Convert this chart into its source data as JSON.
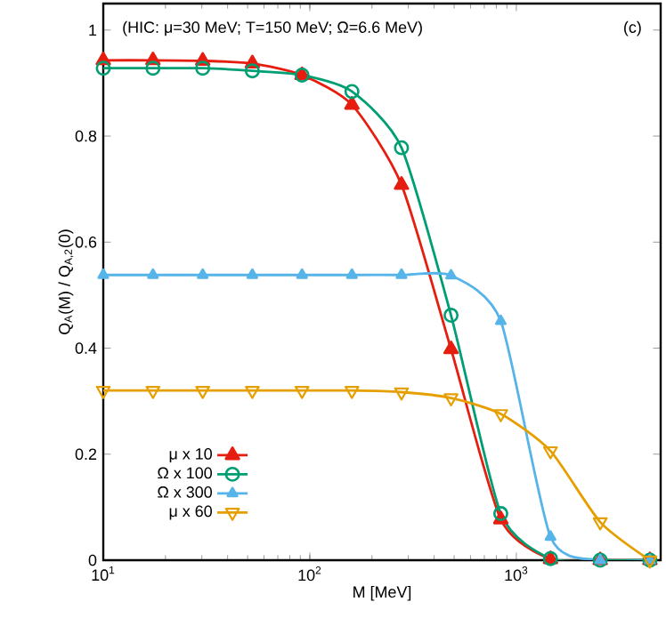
{
  "chart_data": {
    "type": "line",
    "xlabel": "M [MeV]",
    "ylabel": "Q$_{A}$(M) / Q$_{A,2}$(0)",
    "annotations": [
      "(HIC: μ=30 MeV; T=150 MeV; Ω=6.6 MeV)",
      "(c)"
    ],
    "log": "x",
    "xlim": [
      10,
      5000
    ],
    "xticks": [
      {
        "value": 10,
        "label": "10$^{1}$"
      },
      {
        "value": 100,
        "label": "10$^{2}$"
      },
      {
        "value": 1000,
        "label": "10$^{3}$"
      }
    ],
    "ylim": [
      0,
      1.05
    ],
    "yticks": [
      0,
      0.2,
      0.4,
      0.6,
      0.8,
      1
    ],
    "grid": false,
    "legend": "bottom left",
    "x": [
      10,
      17.4,
      30.3,
      52.7,
      91.7,
      160,
      278,
      483,
      841,
      1464,
      2548,
      4434
    ],
    "series": [
      {
        "name": "μ x 10",
        "color": "#e51e10",
        "marker": "triangle",
        "values": [
          0.943,
          0.943,
          0.942,
          0.937,
          0.915,
          0.859,
          0.708,
          0.398,
          0.077,
          0.002,
          0,
          0
        ]
      },
      {
        "name": "Ω x 100",
        "color": "#009e73",
        "marker": "circle",
        "values": [
          0.928,
          0.928,
          0.928,
          0.923,
          0.915,
          0.884,
          0.778,
          0.462,
          0.088,
          0.003,
          0,
          0
        ]
      },
      {
        "name": "Ω x 300",
        "color": "#56b4e9",
        "marker": "triangle-small",
        "values": [
          0.538,
          0.538,
          0.538,
          0.538,
          0.538,
          0.538,
          0.538,
          0.537,
          0.451,
          0.044,
          0,
          0
        ]
      },
      {
        "name": "μ x 60",
        "color": "#e69f00",
        "marker": "triangle-down",
        "values": [
          0.32,
          0.32,
          0.32,
          0.32,
          0.32,
          0.32,
          0.317,
          0.306,
          0.276,
          0.206,
          0.072,
          0
        ]
      }
    ]
  }
}
